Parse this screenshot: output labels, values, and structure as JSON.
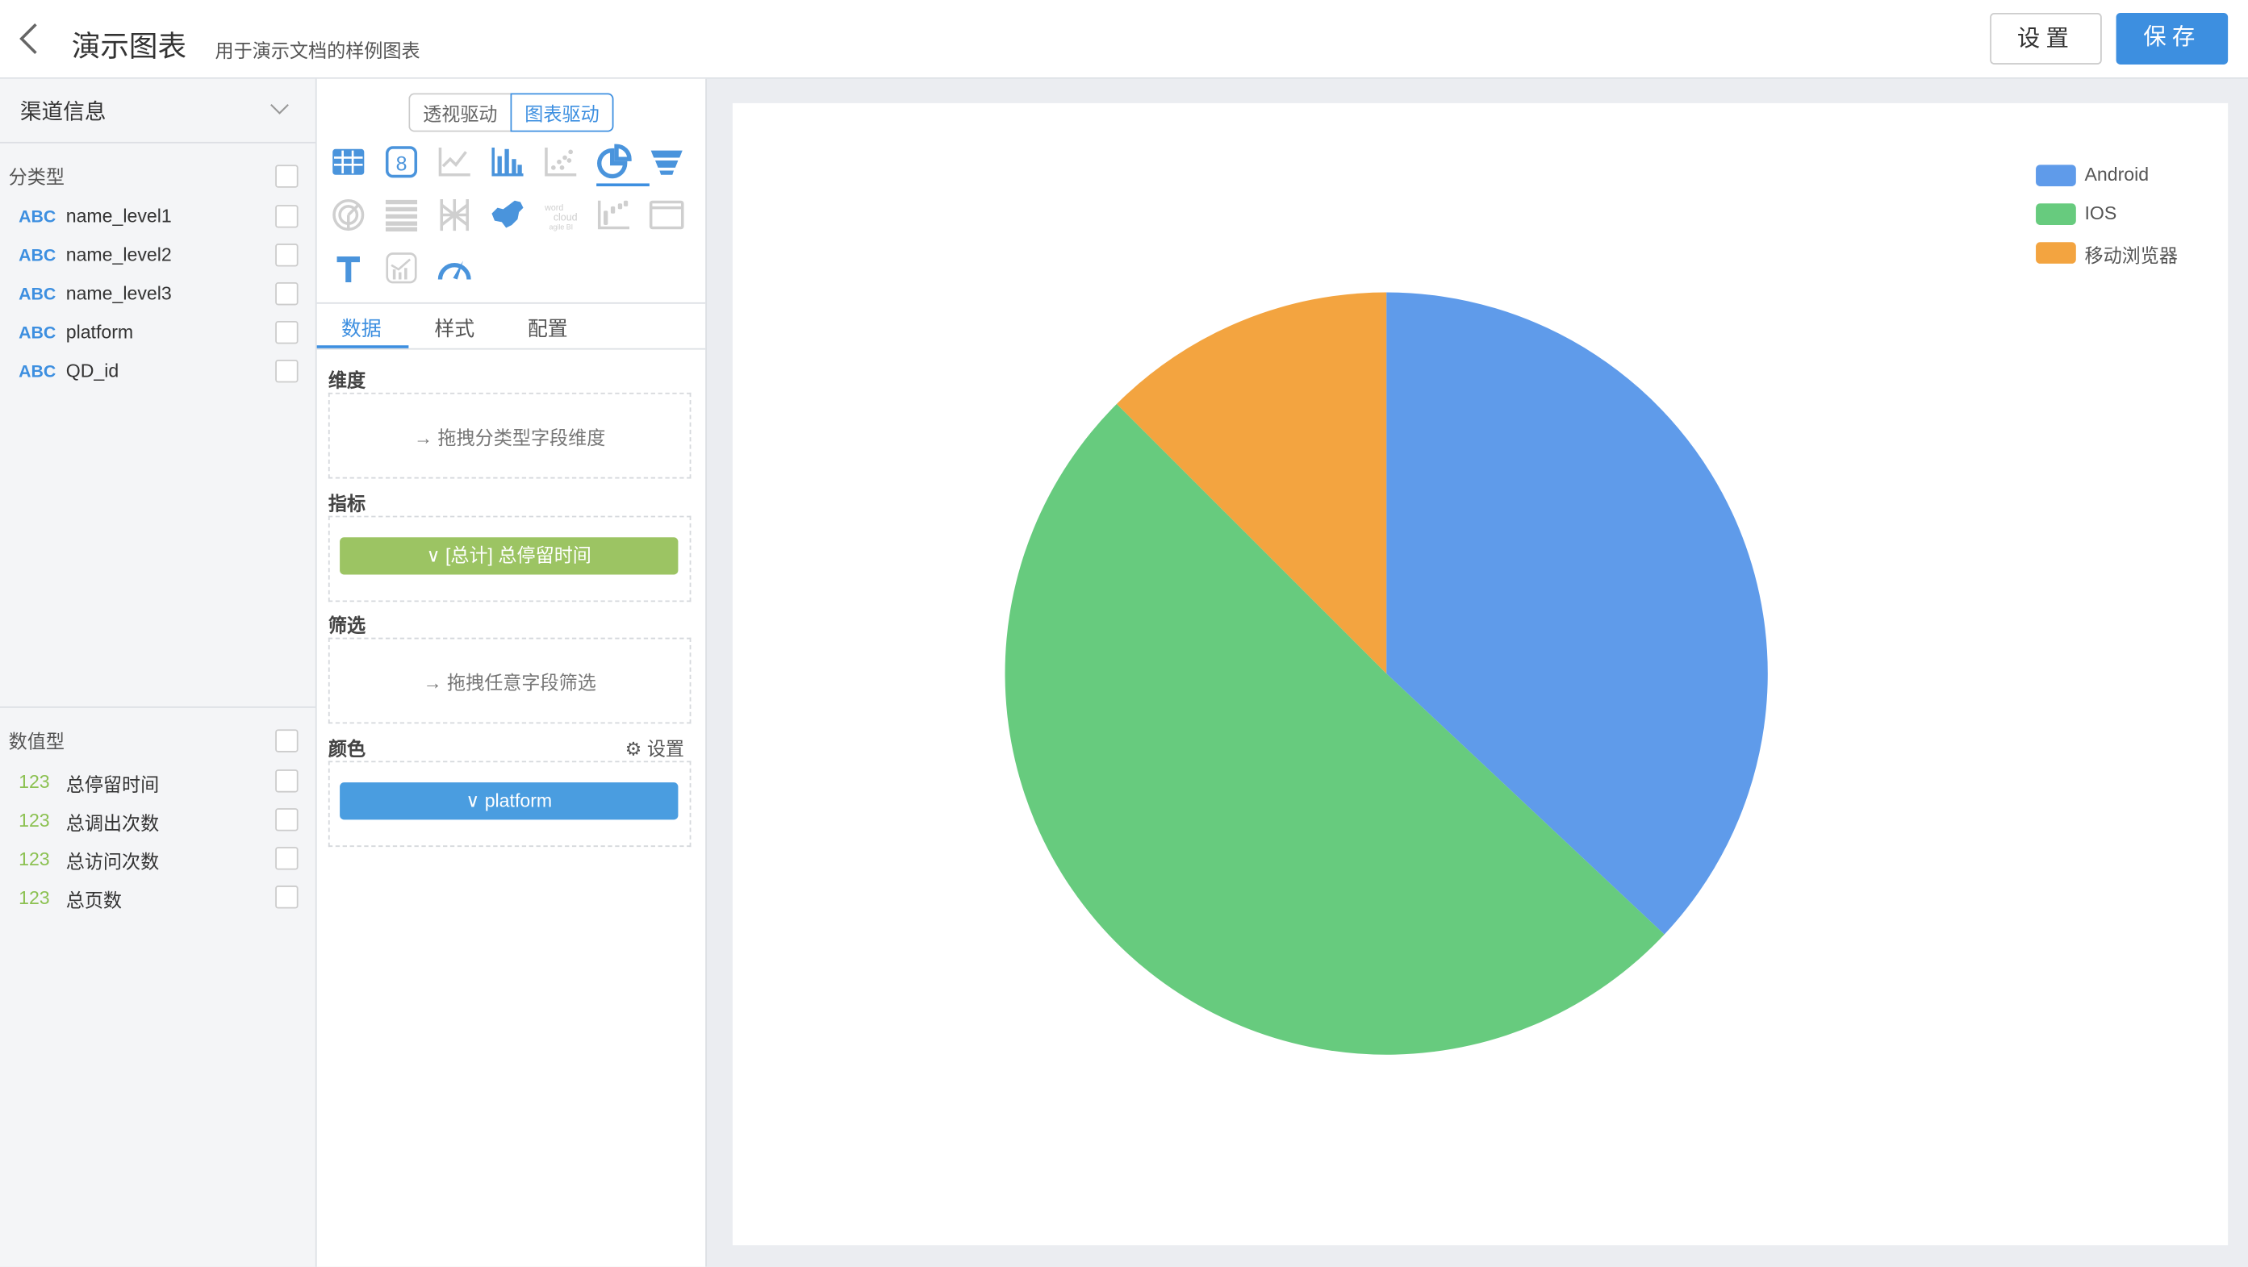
{
  "header": {
    "title": "演示图表",
    "subtitle": "用于演示文档的样例图表",
    "settings_label": "设置",
    "save_label": "保存"
  },
  "left_panel": {
    "dataset": "渠道信息",
    "categorical_label": "分类型",
    "categorical_fields": [
      {
        "type": "ABC",
        "name": "name_level1"
      },
      {
        "type": "ABC",
        "name": "name_level2"
      },
      {
        "type": "ABC",
        "name": "name_level3"
      },
      {
        "type": "ABC",
        "name": "platform"
      },
      {
        "type": "ABC",
        "name": "QD_id"
      }
    ],
    "numeric_label": "数值型",
    "numeric_fields": [
      {
        "type": "123",
        "name": "总停留时间"
      },
      {
        "type": "123",
        "name": "总调出次数"
      },
      {
        "type": "123",
        "name": "总访问次数"
      },
      {
        "type": "123",
        "name": "总页数"
      }
    ]
  },
  "config_panel": {
    "mode_toggle": [
      "透视驱动",
      "图表驱动"
    ],
    "active_mode": "图表驱动",
    "chart_types": [
      "table-icon",
      "number-card-icon",
      "line-chart-icon",
      "bar-chart-icon",
      "scatter-icon",
      "pie-chart-icon",
      "funnel-icon",
      "radar-icon",
      "sankey-icon",
      "parallel-icon",
      "china-map-icon",
      "word-cloud-icon",
      "waterfall-icon",
      "iframe-icon",
      "text-icon",
      "combo-chart-icon",
      "gauge-icon"
    ],
    "selected_chart": "pie-chart-icon",
    "tabs": [
      "数据",
      "样式",
      "配置"
    ],
    "active_tab": "数据",
    "dimension_label": "维度",
    "dimension_hint": "拖拽分类型字段维度",
    "metric_label": "指标",
    "metric_pill": "[总计] 总停留时间",
    "filter_label": "筛选",
    "filter_hint": "拖拽任意字段筛选",
    "color_label": "颜色",
    "color_settings": "设置",
    "color_pill": "platform"
  },
  "colors": {
    "accent": "#3d8fe0",
    "metric_pill": "#9cc463",
    "color_pill": "#4a9de0"
  },
  "chart_data": {
    "type": "pie",
    "legend_position": "top-right",
    "categories": [
      "Android",
      "IOS",
      "移动浏览器"
    ],
    "values": [
      37,
      50.5,
      12.5
    ],
    "value_unit": "percent",
    "colors": [
      "#5f9bea",
      "#67cb7e",
      "#f3a440"
    ]
  }
}
